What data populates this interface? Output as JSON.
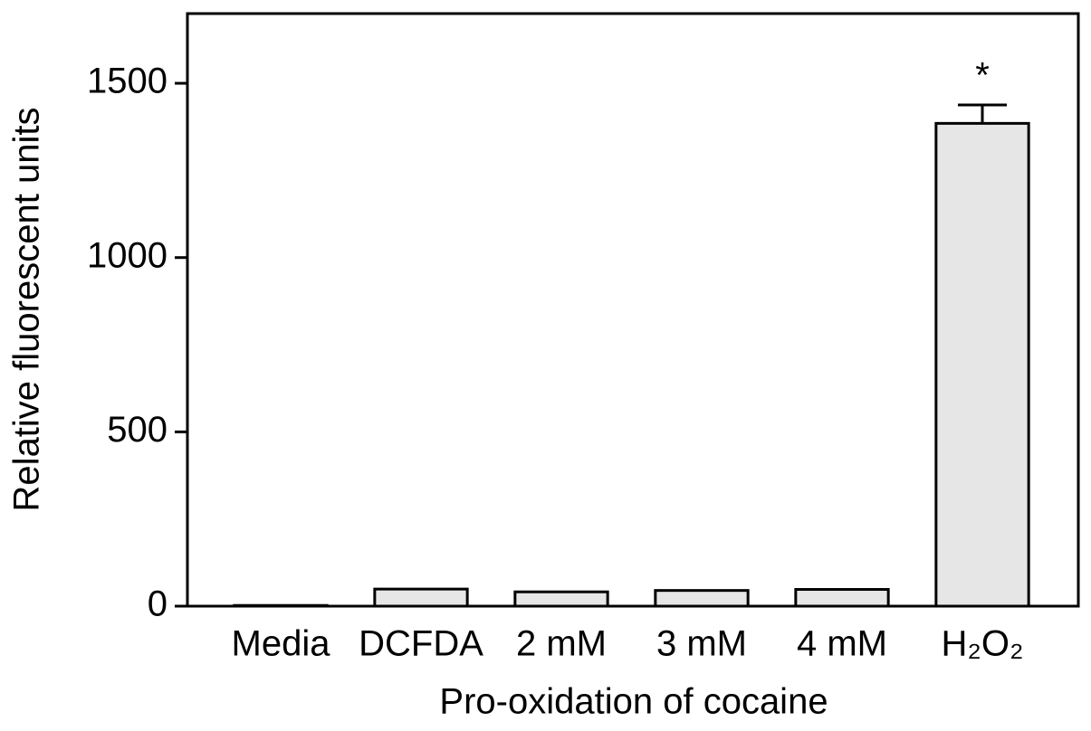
{
  "chart_data": {
    "type": "bar",
    "x_label": "Pro-oxidation of cocaine",
    "y_label": "Relative fluorescent units",
    "categories": [
      "Media",
      "DCFDA",
      "2 mM",
      "3 mM",
      "4 mM",
      "H₂O₂"
    ],
    "values": [
      2,
      49,
      41,
      45,
      48,
      1385
    ],
    "errors": [
      null,
      null,
      null,
      null,
      null,
      53
    ],
    "color": "#e6e6e6",
    "ylim": [
      0,
      1700
    ],
    "yticks": [
      0,
      500,
      1000,
      1500
    ],
    "grid": false,
    "annotations": [
      {
        "text": "*",
        "category": "H₂O₂"
      }
    ]
  }
}
